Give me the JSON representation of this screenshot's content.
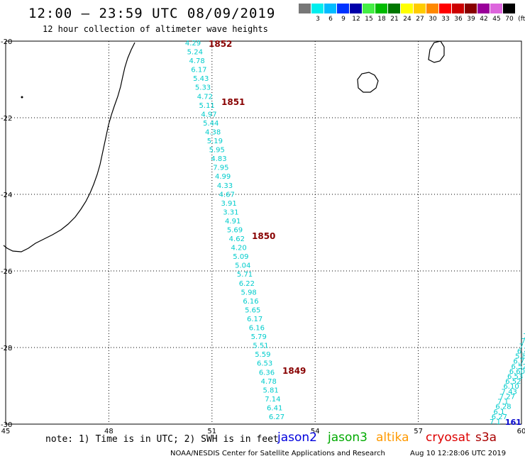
{
  "header": {
    "title": "12:00 – 23:59 UTC 08/09/2019",
    "subtitle": "12 hour collection of altimeter wave heights"
  },
  "legend": {
    "unit": "(ft)",
    "levels": [
      {
        "label": "",
        "color": "#777777"
      },
      {
        "label": "3",
        "color": "#00eeee"
      },
      {
        "label": "6",
        "color": "#00bbff"
      },
      {
        "label": "9",
        "color": "#0033ff"
      },
      {
        "label": "12",
        "color": "#0000aa"
      },
      {
        "label": "15",
        "color": "#44ee44"
      },
      {
        "label": "18",
        "color": "#00bb00"
      },
      {
        "label": "21",
        "color": "#007700"
      },
      {
        "label": "24",
        "color": "#ffff00"
      },
      {
        "label": "27",
        "color": "#ffcc00"
      },
      {
        "label": "30",
        "color": "#ff8800"
      },
      {
        "label": "33",
        "color": "#ff0000"
      },
      {
        "label": "36",
        "color": "#cc0000"
      },
      {
        "label": "39",
        "color": "#880000"
      },
      {
        "label": "42",
        "color": "#990099"
      },
      {
        "label": "45",
        "color": "#dd66dd"
      },
      {
        "label": "70",
        "color": "#000000"
      }
    ]
  },
  "map": {
    "lat_ticks": [
      "-20",
      "-22",
      "-24",
      "-26",
      "-28",
      "-30"
    ],
    "lon_ticks": [
      "45",
      "48",
      "51",
      "54",
      "57",
      "60"
    ],
    "value_color": "#00cccc",
    "time_color": "#880000",
    "tracks": [
      {
        "time_labels": [
          "1852",
          "1851",
          "1850",
          "1849"
        ],
        "values": [
          "4.29",
          "5.24",
          "4.78",
          "6.17",
          "5.43",
          "5.33",
          "4.72",
          "5.11",
          "4.97",
          "5.44",
          "4.38",
          "5.19",
          "5.95",
          "4.83",
          "7.95",
          "4.99",
          "4.33",
          "4.67",
          "3.91",
          "3.31",
          "4.91",
          "5.69",
          "4.62",
          "4.20",
          "5.09",
          "5.04",
          "5.71",
          "6.22",
          "5.98",
          "6.16",
          "5.65",
          "6.17",
          "6.16",
          "5.79",
          "5.51",
          "5.59",
          "6.53",
          "6.36",
          "4.78",
          "5.81",
          "7.14",
          "6.41",
          "6.27"
        ]
      },
      {
        "time_labels": [
          "161"
        ],
        "values": [
          "7",
          "7",
          "7.5",
          "7.3",
          "6.46",
          "5.86",
          "6.77",
          "6.52",
          "6.60",
          "6.53",
          "6.52",
          "6.10",
          "7.43",
          "7.27",
          "7.1",
          "6.28",
          "6.1",
          "6.27",
          "7.1"
        ]
      }
    ]
  },
  "footer": {
    "note": "note: 1) Time is in UTC; 2) SWH is in feet",
    "satellites": [
      {
        "name": "jason2",
        "color": "#0000dd"
      },
      {
        "name": "jason3",
        "color": "#00aa00"
      },
      {
        "name": "altika",
        "color": "#ff9900"
      },
      {
        "name": "cryosat",
        "color": "#dd0000"
      },
      {
        "name": "s3a",
        "color": "#aa0000"
      }
    ],
    "credit": "NOAA/NESDIS Center for Satellite Applications and Research",
    "timestamp": "Aug 10 12:28:06 UTC 2019"
  }
}
